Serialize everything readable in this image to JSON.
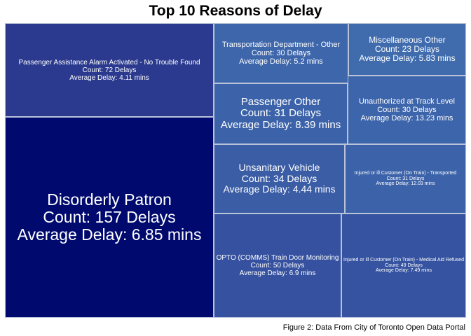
{
  "chart_data": {
    "type": "treemap",
    "title": "Top 10 Reasons of Delay",
    "caption": "Figure 2: Data From City of Toronto Open Data Portal",
    "items": [
      {
        "name": "Disorderly Patron",
        "count": 157,
        "avg_delay": 6.85,
        "count_label": "Count: 157 Delays",
        "avg_label": "Average Delay: 6.85 mins",
        "color": "#000a6e"
      },
      {
        "name": "Passenger Assistance Alarm Activated - No Trouble Found",
        "count": 72,
        "avg_delay": 4.11,
        "count_label": "Count: 72 Delays",
        "avg_label": "Average Delay: 4.11 mins",
        "color": "#2b3a8e"
      },
      {
        "name": "OPTO (COMMS) Train Door Monitoring",
        "count": 50,
        "avg_delay": 6.9,
        "count_label": "Count: 50 Delays",
        "avg_label": "Average Delay: 6.9 mins",
        "color": "#35519f"
      },
      {
        "name": "Injured or ill Customer (On Train) - Medical Aid Refused",
        "count": 49,
        "avg_delay": 7.49,
        "count_label": "Count: 49 Delays",
        "avg_label": "Average Delay: 7.49 mins",
        "color": "#3553a0"
      },
      {
        "name": "Unsanitary Vehicle",
        "count": 34,
        "avg_delay": 4.44,
        "count_label": "Count: 34 Delays",
        "avg_label": "Average Delay: 4.44 mins",
        "color": "#3a5da6"
      },
      {
        "name": "Injured or ill Customer (On Train) - Transported",
        "count": 31,
        "avg_delay": 12.03,
        "count_label": "Count: 31 Delays",
        "avg_label": "Average Delay: 12.03 mins",
        "color": "#3c63aa"
      },
      {
        "name": "Passenger Other",
        "count": 31,
        "avg_delay": 8.39,
        "count_label": "Count: 31 Delays",
        "avg_label": "Average Delay: 8.39 mins",
        "color": "#3c62a9"
      },
      {
        "name": "Transportation Department - Other",
        "count": 30,
        "avg_delay": 5.2,
        "count_label": "Count: 30 Delays",
        "avg_label": "Average Delay: 5.2 mins",
        "color": "#3e66ab"
      },
      {
        "name": "Unauthorized at Track Level",
        "count": 30,
        "avg_delay": 13.23,
        "count_label": "Count: 30 Delays",
        "avg_label": "Average Delay: 13.23 mins",
        "color": "#3d65ab"
      },
      {
        "name": "Miscellaneous Other",
        "count": 23,
        "avg_delay": 5.83,
        "count_label": "Count: 23 Delays",
        "avg_label": "Average Delay: 5.83 mins",
        "color": "#406cae"
      }
    ]
  }
}
